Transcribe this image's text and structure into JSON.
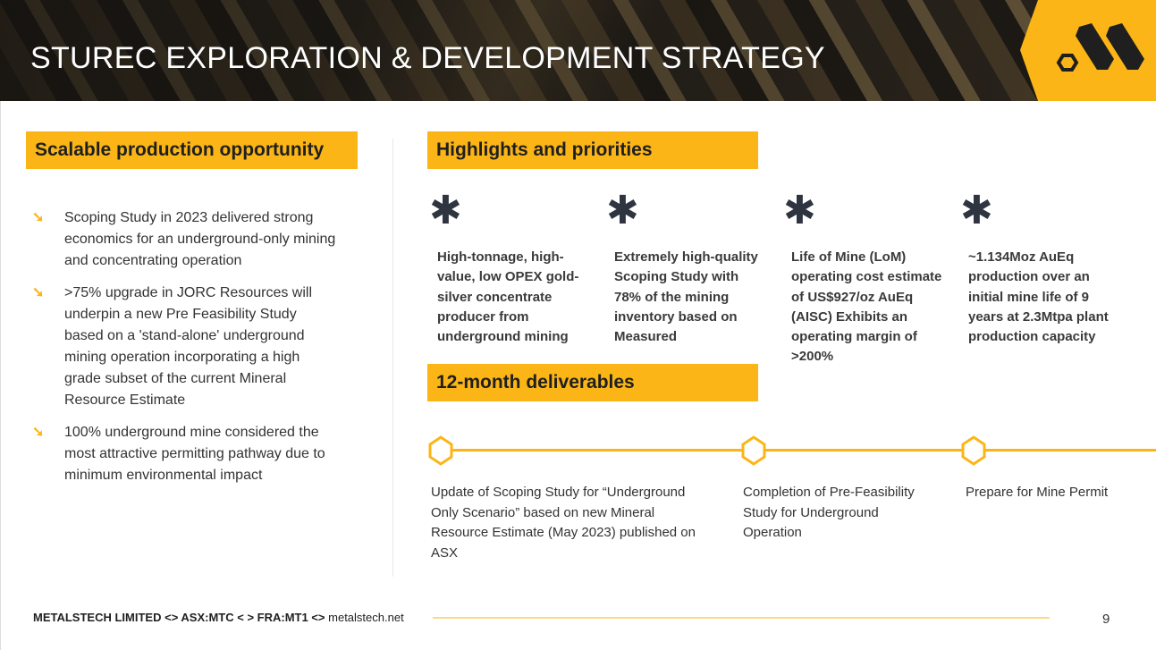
{
  "header": {
    "title": "STUREC EXPLORATION & DEVELOPMENT STRATEGY",
    "logo": "metalstech-logo"
  },
  "left": {
    "banner": "Scalable production opportunity",
    "bullets": [
      "Scoping Study in 2023 delivered strong economics for an underground-only mining and concentrating operation",
      ">75% upgrade in JORC Resources will underpin a new Pre Feasibility Study based on a 'stand-alone' underground mining operation incorporating a high grade subset of the current Mineral Resource Estimate",
      "100% underground mine considered the most attractive permitting pathway due to minimum environmental impact"
    ],
    "bullet_icon": "arrow-down-right-icon"
  },
  "highlights": {
    "banner": "Highlights and priorities",
    "icon": "asterisk-icon",
    "items": [
      "High-tonnage, high-value, low OPEX gold-silver concentrate producer from underground mining",
      "Extremely high-quality Scoping Study with 78% of the mining inventory based on Measured",
      "Life of Mine (LoM) operating cost estimate of US$927/oz AuEq (AISC) Exhibits an operating margin of >200%",
      "~1.134Moz AuEq production over an initial mine life of 9 years at 2.3Mtpa plant production capacity"
    ]
  },
  "deliverables": {
    "banner": "12-month deliverables",
    "items": [
      "Update of Scoping Study for “Underground Only Scenario” based on new Mineral Resource Estimate (May 2023) published on ASX",
      "Completion of Pre-Feasibility Study for Underground Operation",
      "Prepare for Mine Permit"
    ]
  },
  "footer": {
    "company": "METALSTECH LIMITED",
    "sep": " <> ",
    "asx": "ASX:MTC",
    "sep2": "  < > ",
    "fra": "FRA:MT1",
    "sep3": " <> ",
    "website": "metalstech.net",
    "page": "9"
  },
  "colors": {
    "accent": "#fbb516",
    "dark": "#1f1f1f"
  }
}
